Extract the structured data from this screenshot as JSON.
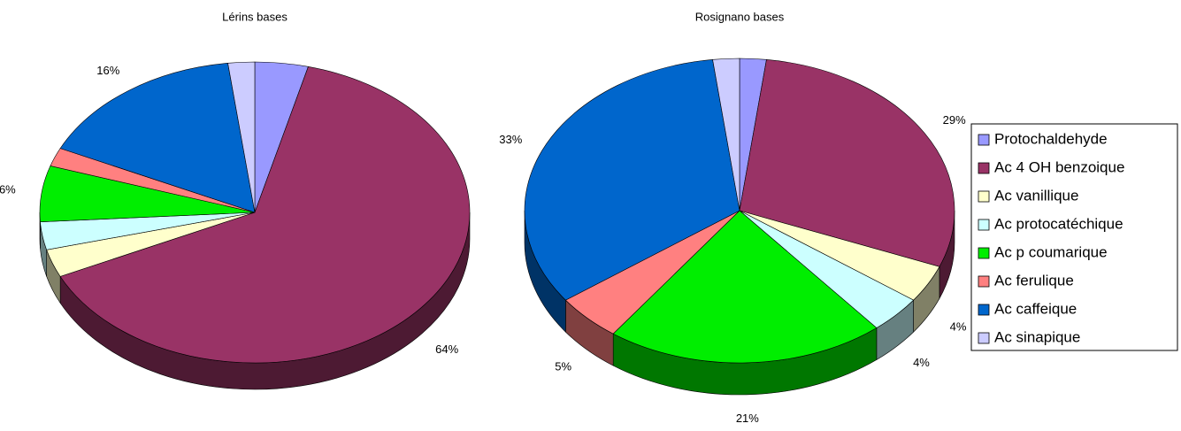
{
  "chart_data": [
    {
      "type": "pie",
      "title": "Lérins bases",
      "values": [
        4,
        64,
        3,
        3,
        6,
        2,
        16,
        2
      ],
      "value_labels": [
        null,
        "64%",
        null,
        null,
        "6%",
        null,
        "16%",
        null
      ],
      "colors": [
        "#9999ff",
        "#993366",
        "#ffffcc",
        "#ccffff",
        "#00ee00",
        "#ff8080",
        "#0066cc",
        "#ccccff"
      ]
    },
    {
      "type": "pie",
      "title": "Rosignano bases",
      "categories": [
        "Protochaldehyde",
        "Ac 4 OH benzoique",
        "Ac vanillique",
        "Ac protocatéchique",
        "Ac p coumarique",
        "Ac ferulique",
        "Ac caffeique",
        "Ac sinapique"
      ],
      "values": [
        2,
        29,
        4,
        4,
        21,
        5,
        33,
        2
      ],
      "value_labels": [
        null,
        "29%",
        "4%",
        "4%",
        "21%",
        "5%",
        "33%",
        null
      ],
      "colors": [
        "#9999ff",
        "#993366",
        "#ffffcc",
        "#ccffff",
        "#00ee00",
        "#ff8080",
        "#0066cc",
        "#ccccff"
      ],
      "legend": "right"
    }
  ]
}
